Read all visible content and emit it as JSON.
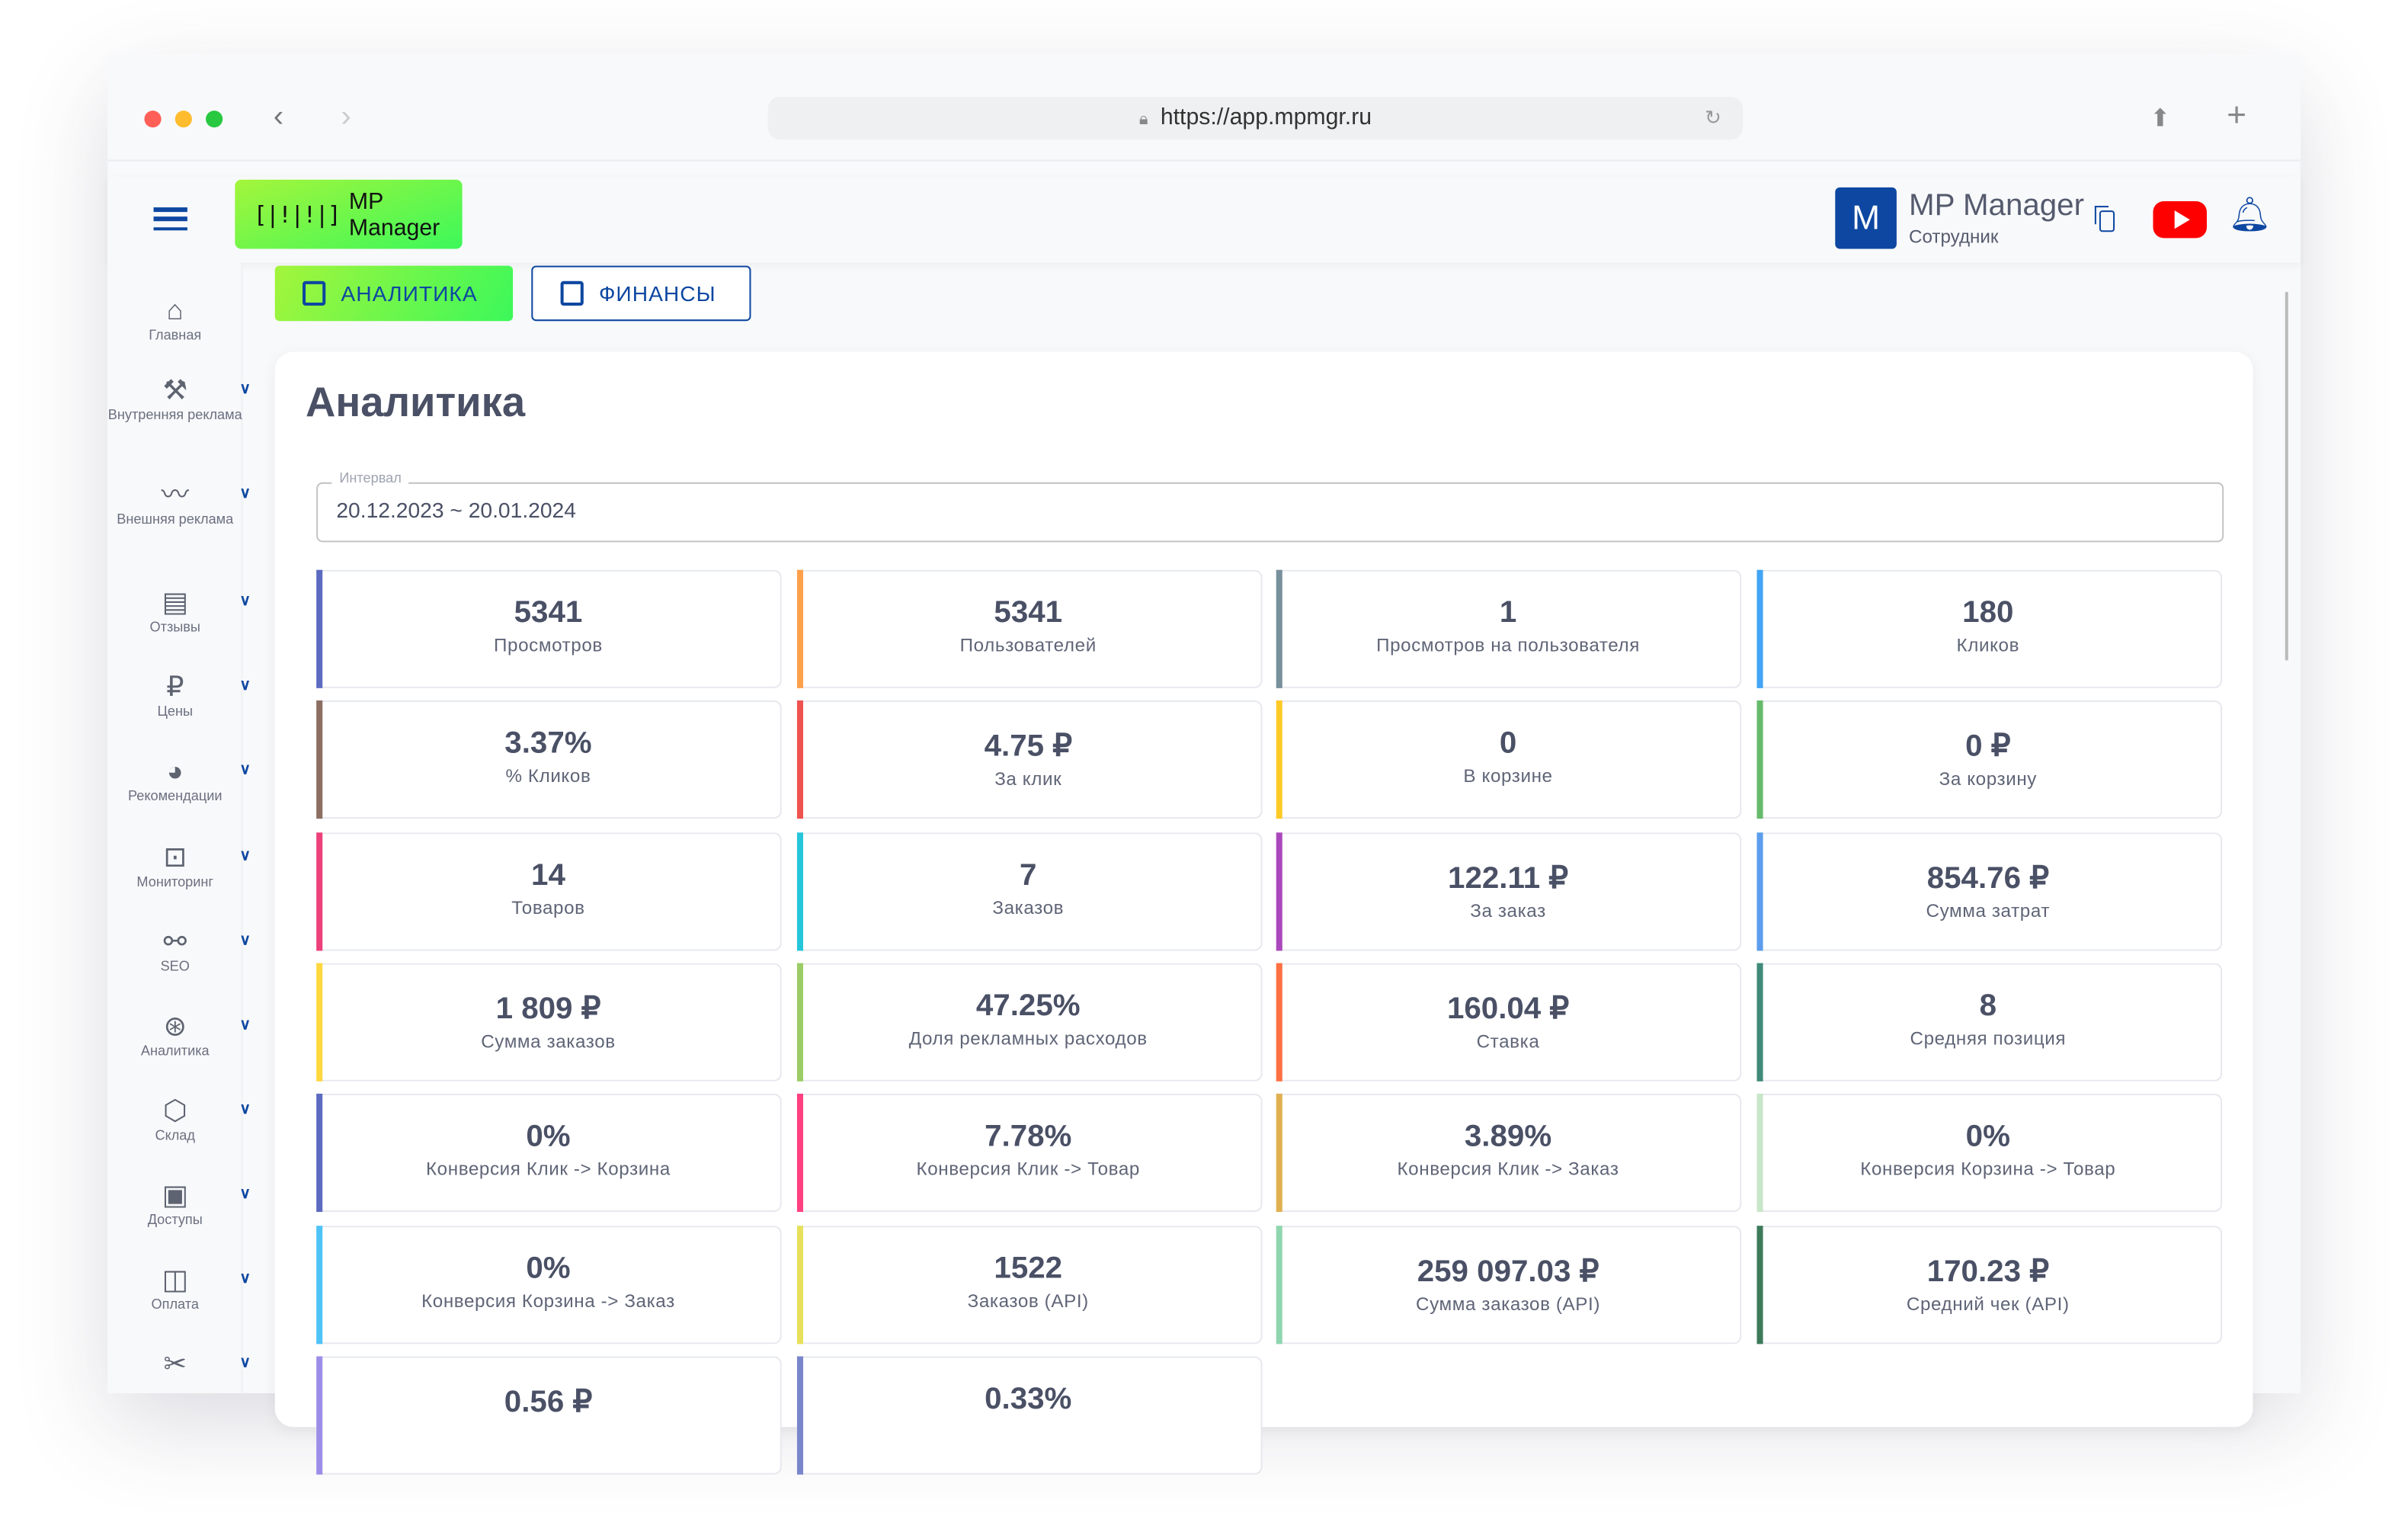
{
  "browser": {
    "url": "https://app.mpmgr.ru",
    "back_icon": "chevron-left",
    "forward_icon": "chevron-right",
    "lock_icon": "lock",
    "reload_icon": "reload",
    "share_icon": "share",
    "new_tab_icon": "plus"
  },
  "header": {
    "logo_text": "MP Manager",
    "avatar_letter": "M",
    "user_name": "MP Manager",
    "user_role": "Сотрудник",
    "colors": {
      "brand": "#0d47a1",
      "logo_gradient": [
        "#a4f53b",
        "#3cf85a"
      ],
      "youtube": "#ff0000"
    }
  },
  "sidebar": {
    "items": [
      {
        "label": "Главная",
        "icon": "home",
        "chev": false
      },
      {
        "label": "Внутренняя реклама",
        "icon": "gavel",
        "chev": true
      },
      {
        "label": "Внешняя реклама",
        "icon": "trend",
        "chev": true
      },
      {
        "label": "Отзывы",
        "icon": "reviews",
        "chev": true
      },
      {
        "label": "Цены",
        "icon": "ruble",
        "chev": true
      },
      {
        "label": "Рекомендации",
        "icon": "thumb",
        "chev": true
      },
      {
        "label": "Мониторинг",
        "icon": "monitor",
        "chev": true
      },
      {
        "label": "SEO",
        "icon": "seo",
        "chev": true
      },
      {
        "label": "Аналитика",
        "icon": "analytics",
        "chev": true
      },
      {
        "label": "Склад",
        "icon": "box",
        "chev": true
      },
      {
        "label": "Доступы",
        "icon": "badge",
        "chev": true
      },
      {
        "label": "Оплата",
        "icon": "wallet",
        "chev": true
      },
      {
        "label": "",
        "icon": "tools",
        "chev": true
      }
    ]
  },
  "tabs": [
    {
      "label": "АНАЛИТИКА",
      "active": true
    },
    {
      "label": "ФИНАНСЫ",
      "active": false
    }
  ],
  "main": {
    "title": "Аналитика",
    "interval": {
      "label": "Интервал",
      "value": "20.12.2023 ~ 20.01.2024"
    }
  },
  "metrics": [
    {
      "value": "5341",
      "label": "Просмотров",
      "color": "#5c6bc0"
    },
    {
      "value": "5341",
      "label": "Пользователей",
      "color": "#ffa04a"
    },
    {
      "value": "1",
      "label": "Просмотров на пользователя",
      "color": "#78909c"
    },
    {
      "value": "180",
      "label": "Кликов",
      "color": "#42a5f5"
    },
    {
      "value": "3.37%",
      "label": "% Кликов",
      "color": "#8d6e63"
    },
    {
      "value": "4.75 ₽",
      "label": "За клик",
      "color": "#ef5350"
    },
    {
      "value": "0",
      "label": "В корзине",
      "color": "#ffca28"
    },
    {
      "value": "0 ₽",
      "label": "За корзину",
      "color": "#66bb6a"
    },
    {
      "value": "14",
      "label": "Товаров",
      "color": "#ec407a"
    },
    {
      "value": "7",
      "label": "Заказов",
      "color": "#26c6da"
    },
    {
      "value": "122.11 ₽",
      "label": "За заказ",
      "color": "#ab47bc"
    },
    {
      "value": "854.76 ₽",
      "label": "Сумма затрат",
      "color": "#5c9ded"
    },
    {
      "value": "1 809 ₽",
      "label": "Сумма заказов",
      "color": "#ffd740"
    },
    {
      "value": "47.25%",
      "label": "Доля рекламных расходов",
      "color": "#9ccc65"
    },
    {
      "value": "160.04 ₽",
      "label": "Ставка",
      "color": "#ff7043"
    },
    {
      "value": "8",
      "label": "Средняя позиция",
      "color": "#3f8a78"
    },
    {
      "value": "0%",
      "label": "Конверсия Клик -> Корзина",
      "color": "#5c6bc0"
    },
    {
      "value": "7.78%",
      "label": "Конверсия Клик -> Товар",
      "color": "#ff4081"
    },
    {
      "value": "3.89%",
      "label": "Конверсия Клик -> Заказ",
      "color": "#e0b050"
    },
    {
      "value": "0%",
      "label": "Конверсия Корзина -> Товар",
      "color": "#c8e6c9"
    },
    {
      "value": "0%",
      "label": "Конверсия Корзина -> Заказ",
      "color": "#4fc3f7"
    },
    {
      "value": "1522",
      "label": "Заказов (API)",
      "color": "#e6e05a"
    },
    {
      "value": "259 097.03 ₽",
      "label": "Сумма заказов (API)",
      "color": "#8fd6b0"
    },
    {
      "value": "170.23 ₽",
      "label": "Средний чек (API)",
      "color": "#3d7a5a"
    },
    {
      "value": "0.56 ₽",
      "label": "",
      "color": "#9c8ee8"
    },
    {
      "value": "0.33%",
      "label": "",
      "color": "#7986cb"
    }
  ]
}
